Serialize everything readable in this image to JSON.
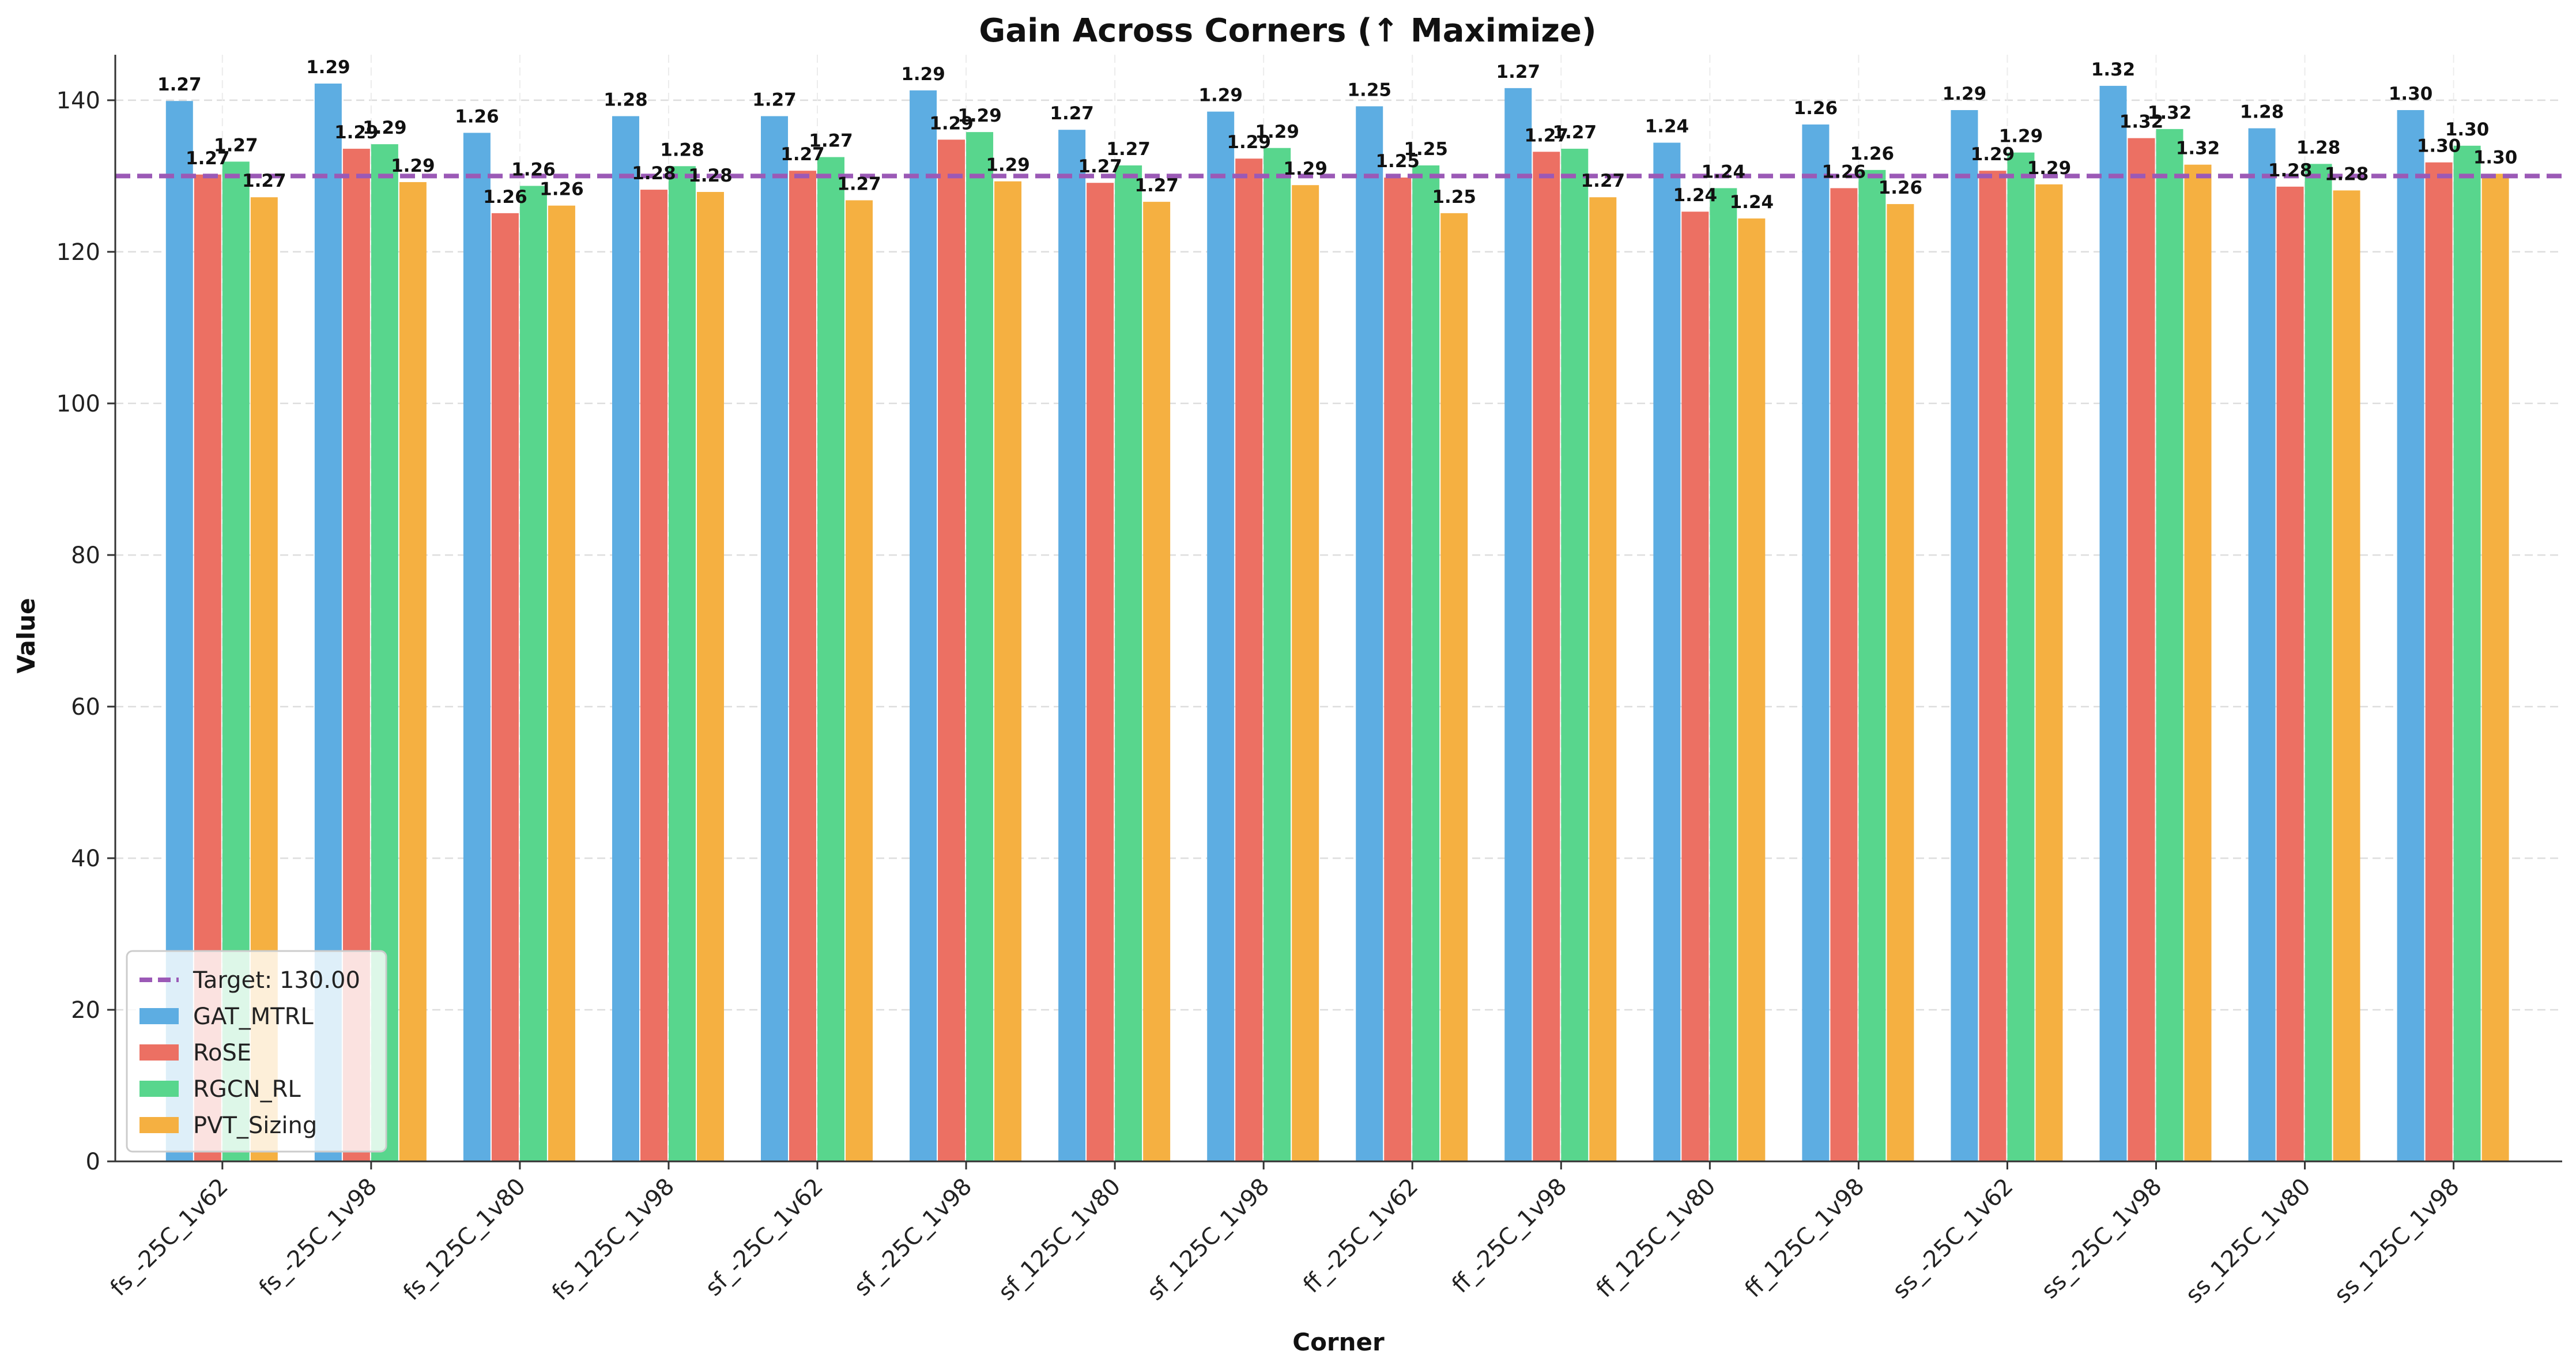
{
  "chart_data": {
    "type": "bar",
    "title": "Gain Across Corners (↑ Maximize)",
    "xlabel": "Corner",
    "ylabel": "Value",
    "ylim": [
      0,
      146
    ],
    "yticks": [
      0,
      20,
      40,
      60,
      80,
      100,
      120,
      140
    ],
    "grid": true,
    "legend_position": "bottom-left",
    "target": {
      "label": "Target: 130.00",
      "value": 130,
      "color": "#9b59b6"
    },
    "categories": [
      "fs_-25C_1v62",
      "fs_-25C_1v98",
      "fs_125C_1v80",
      "fs_125C_1v98",
      "sf_-25C_1v62",
      "sf_-25C_1v98",
      "sf_125C_1v80",
      "sf_125C_1v98",
      "ff_-25C_1v62",
      "ff_-25C_1v98",
      "ff_125C_1v80",
      "ff_125C_1v98",
      "ss_-25C_1v62",
      "ss_-25C_1v98",
      "ss_125C_1v80",
      "ss_125C_1v98"
    ],
    "series": [
      {
        "name": "GAT_MTRL",
        "color": "#5dade2",
        "values": [
          139.9,
          142.2,
          135.7,
          137.9,
          137.9,
          141.3,
          136.1,
          138.5,
          139.2,
          141.6,
          134.4,
          136.8,
          138.7,
          141.9,
          136.3,
          138.7
        ],
        "labels": [
          "1.27",
          "1.29",
          "1.26",
          "1.28",
          "1.27",
          "1.29",
          "1.27",
          "1.29",
          "1.25",
          "1.27",
          "1.24",
          "1.26",
          "1.29",
          "1.32",
          "1.28",
          "1.30"
        ]
      },
      {
        "name": "RoSE",
        "color": "#ec7063",
        "values": [
          130.2,
          133.6,
          125.1,
          128.2,
          130.7,
          134.8,
          129.1,
          132.3,
          129.8,
          133.2,
          125.3,
          128.4,
          130.7,
          135.0,
          128.6,
          131.8
        ],
        "labels": [
          "1.27",
          "1.29",
          "1.26",
          "1.28",
          "1.27",
          "1.29",
          "1.27",
          "1.29",
          "1.25",
          "1.27",
          "1.24",
          "1.26",
          "1.29",
          "1.32",
          "1.28",
          "1.30"
        ]
      },
      {
        "name": "RGCN_RL",
        "color": "#58d68d",
        "values": [
          131.9,
          134.2,
          128.7,
          131.3,
          132.5,
          135.8,
          131.4,
          133.7,
          131.4,
          133.6,
          128.4,
          130.8,
          133.1,
          136.2,
          131.6,
          134.0
        ],
        "labels": [
          "1.27",
          "1.29",
          "1.26",
          "1.28",
          "1.27",
          "1.29",
          "1.27",
          "1.29",
          "1.25",
          "1.27",
          "1.24",
          "1.26",
          "1.29",
          "1.32",
          "1.28",
          "1.30"
        ]
      },
      {
        "name": "PVT_Sizing",
        "color": "#f5b041",
        "values": [
          127.2,
          129.2,
          126.1,
          127.9,
          126.8,
          129.3,
          126.6,
          128.8,
          125.1,
          127.2,
          124.4,
          126.3,
          128.9,
          131.5,
          128.1,
          130.3
        ],
        "labels": [
          "1.27",
          "1.29",
          "1.26",
          "1.28",
          "1.27",
          "1.29",
          "1.27",
          "1.29",
          "1.25",
          "1.27",
          "1.24",
          "1.26",
          "1.29",
          "1.32",
          "1.28",
          "1.30"
        ]
      }
    ]
  }
}
